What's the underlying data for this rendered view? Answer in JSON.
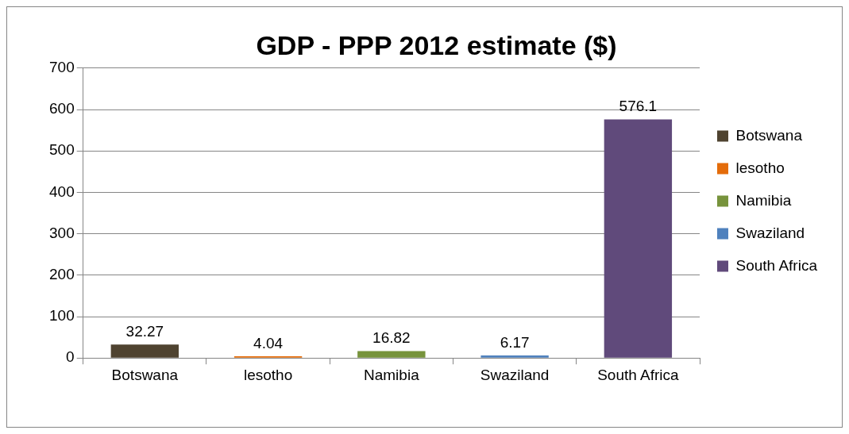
{
  "chart_data": {
    "type": "bar",
    "title": "GDP - PPP 2012 estimate ($)",
    "categories": [
      "Botswana",
      "lesotho",
      "Namibia",
      "Swaziland",
      "South Africa"
    ],
    "series": [
      {
        "name": "Botswana",
        "color": "#4f4330",
        "values": [
          32.27,
          null,
          null,
          null,
          null
        ]
      },
      {
        "name": "lesotho",
        "color": "#e46c0a",
        "values": [
          null,
          4.04,
          null,
          null,
          null
        ]
      },
      {
        "name": "Namibia",
        "color": "#77933c",
        "values": [
          null,
          null,
          16.82,
          null,
          null
        ]
      },
      {
        "name": "Swaziland",
        "color": "#4f81bd",
        "values": [
          null,
          null,
          null,
          6.17,
          null
        ]
      },
      {
        "name": "South Africa",
        "color": "#604a7b",
        "values": [
          null,
          null,
          null,
          null,
          576.1
        ]
      }
    ],
    "ylim": [
      0,
      700
    ],
    "yticks": [
      0,
      100,
      200,
      300,
      400,
      500,
      600,
      700
    ],
    "grid": "y",
    "legend": "right",
    "data_labels": true
  }
}
